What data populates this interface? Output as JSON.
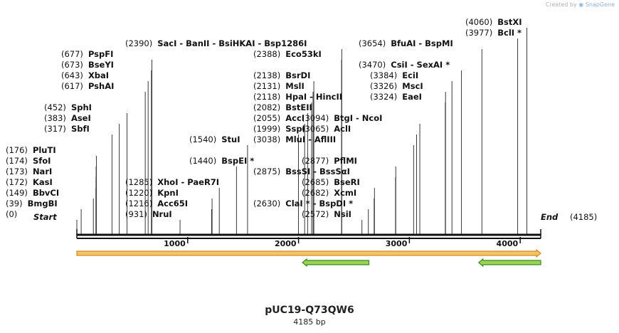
{
  "watermark": {
    "prefix": "Created by",
    "brand": "SnapGene"
  },
  "plasmid": {
    "name": "pUC19-Q73QW6",
    "length_label": "4185 bp",
    "length": 4185
  },
  "ruler": {
    "ticks": [
      1000,
      2000,
      3000,
      4000
    ],
    "start_label": "Start",
    "start_pos": "(0)",
    "end_label": "End",
    "end_pos": "(4185)"
  },
  "features": [
    {
      "name": "orange-feature",
      "start": 0,
      "end": 4185,
      "direction": "forward",
      "color": "#f2c46a",
      "edge": "#d88a1a"
    },
    {
      "name": "green-feature-1",
      "start": 2035,
      "end": 2635,
      "direction": "reverse",
      "color": "#9ad454",
      "edge": "#3c8c1e"
    },
    {
      "name": "green-feature-2",
      "start": 3625,
      "end": 4185,
      "direction": "reverse",
      "color": "#9ad454",
      "edge": "#3c8c1e"
    }
  ],
  "sites": [
    {
      "pos": "(0)",
      "label": "",
      "loc": 0,
      "row": 0,
      "col": 0
    },
    {
      "pos": "(39)",
      "label": "BmgBI",
      "loc": 39,
      "row": 1,
      "col": 0
    },
    {
      "pos": "(149)",
      "label": "BbvCI",
      "loc": 149,
      "row": 2,
      "col": 0
    },
    {
      "pos": "(172)",
      "label": "KasI",
      "loc": 172,
      "row": 3,
      "col": 0
    },
    {
      "pos": "(173)",
      "label": "NarI",
      "loc": 173,
      "row": 4,
      "col": 0
    },
    {
      "pos": "(174)",
      "label": "SfoI",
      "loc": 174,
      "row": 5,
      "col": 0
    },
    {
      "pos": "(176)",
      "label": "PluTI",
      "loc": 176,
      "row": 6,
      "col": 0
    },
    {
      "pos": "(317)",
      "label": "SbfI",
      "loc": 317,
      "row": 8,
      "col": 1
    },
    {
      "pos": "(383)",
      "label": "AseI",
      "loc": 383,
      "row": 9,
      "col": 1
    },
    {
      "pos": "(452)",
      "label": "SphI",
      "loc": 452,
      "row": 10,
      "col": 1
    },
    {
      "pos": "(617)",
      "label": "PshAI",
      "loc": 617,
      "row": 12,
      "col": 2
    },
    {
      "pos": "(643)",
      "label": "XbaI",
      "loc": 643,
      "row": 13,
      "col": 2
    },
    {
      "pos": "(673)",
      "label": "BseYI",
      "loc": 673,
      "row": 14,
      "col": 2
    },
    {
      "pos": "(677)",
      "label": "PspFI",
      "loc": 677,
      "row": 15,
      "col": 2
    },
    {
      "pos": "(931)",
      "label": "NruI",
      "loc": 931,
      "row": 0,
      "col": 3
    },
    {
      "pos": "(1216)",
      "label": "Acc65I",
      "loc": 1216,
      "row": 1,
      "col": 3
    },
    {
      "pos": "(1220)",
      "label": "KpnI",
      "loc": 1220,
      "row": 2,
      "col": 3
    },
    {
      "pos": "(1285)",
      "label": "XhoI   -  PaeR7I",
      "loc": 1285,
      "row": 3,
      "col": 3
    },
    {
      "pos": "(1440)",
      "label": "BspEI *",
      "loc": 1440,
      "row": 5,
      "col": 4
    },
    {
      "pos": "(1540)",
      "label": "StuI",
      "loc": 1540,
      "row": 7,
      "col": 4
    },
    {
      "pos": "(2390)",
      "label": "SacI   -  BanII   -  BsiHKAI   -  Bsp1286I",
      "loc": 2390,
      "row": 16,
      "col": 5
    },
    {
      "pos": "(2388)",
      "label": "Eco53kI",
      "loc": 2388,
      "row": 15,
      "col": 6
    },
    {
      "pos": "(2138)",
      "label": "BsrDI",
      "loc": 2138,
      "row": 13,
      "col": 6
    },
    {
      "pos": "(2131)",
      "label": "MslI",
      "loc": 2131,
      "row": 12,
      "col": 6
    },
    {
      "pos": "(2118)",
      "label": "HpaI   -  HincII",
      "loc": 2118,
      "row": 11,
      "col": 6
    },
    {
      "pos": "(2082)",
      "label": "BstEII",
      "loc": 2082,
      "row": 10,
      "col": 6
    },
    {
      "pos": "(2055)",
      "label": "AccI",
      "loc": 2055,
      "row": 9,
      "col": 6
    },
    {
      "pos": "(1999)",
      "label": "SspI",
      "loc": 1999,
      "row": 8,
      "col": 6
    },
    {
      "pos": "(2630)",
      "label": "ClaI *  -  BspDI *",
      "loc": 2630,
      "row": 1,
      "col": 7
    },
    {
      "pos": "(2572)",
      "label": "NsiI",
      "loc": 2572,
      "row": 0,
      "col": 8
    },
    {
      "pos": "(2682)",
      "label": "XcmI",
      "loc": 2682,
      "row": 2,
      "col": 8
    },
    {
      "pos": "(2685)",
      "label": "BseRI",
      "loc": 2685,
      "row": 3,
      "col": 8
    },
    {
      "pos": "(2875)",
      "label": "BssSI   -  BssSαI",
      "loc": 2875,
      "row": 4,
      "col": 7
    },
    {
      "pos": "(2877)",
      "label": "PflMI",
      "loc": 2877,
      "row": 5,
      "col": 8
    },
    {
      "pos": "(3038)",
      "label": "MluI   -  AflIII",
      "loc": 3038,
      "row": 7,
      "col": 7
    },
    {
      "pos": "(3065)",
      "label": "AclI",
      "loc": 3065,
      "row": 8,
      "col": 8
    },
    {
      "pos": "(3094)",
      "label": "BtgI   -  NcoI",
      "loc": 3094,
      "row": 9,
      "col": 8
    },
    {
      "pos": "(3324)",
      "label": "EaeI",
      "loc": 3324,
      "row": 11,
      "col": 9
    },
    {
      "pos": "(3326)",
      "label": "MscI",
      "loc": 3326,
      "row": 12,
      "col": 9
    },
    {
      "pos": "(3384)",
      "label": "EciI",
      "loc": 3384,
      "row": 13,
      "col": 9
    },
    {
      "pos": "(3470)",
      "label": "CsiI   -  SexAI *",
      "loc": 3470,
      "row": 14,
      "col": 10
    },
    {
      "pos": "(3654)",
      "label": "BfuAI   -  BspMI",
      "loc": 3654,
      "row": 16,
      "col": 10
    },
    {
      "pos": "(3977)",
      "label": "BclI *",
      "loc": 3977,
      "row": 17,
      "col": 11
    },
    {
      "pos": "(4060)",
      "label": "BstXI",
      "loc": 4060,
      "row": 18,
      "col": 11
    }
  ]
}
